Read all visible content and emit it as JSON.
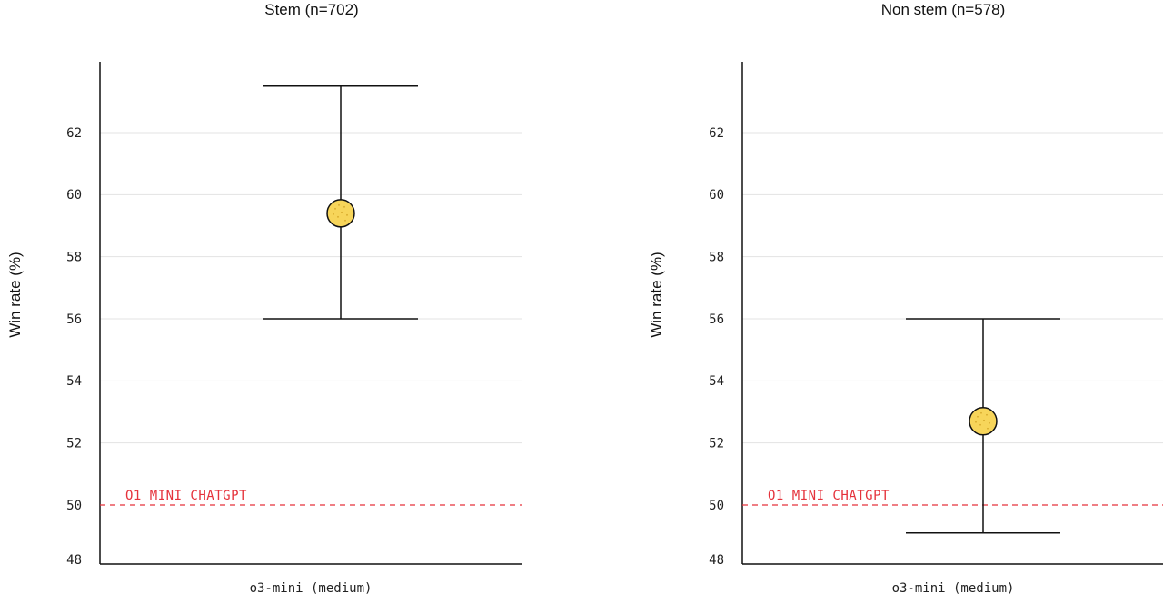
{
  "chart_data": [
    {
      "type": "scatter",
      "title": "Stem (n=702)",
      "ylabel": "Win rate (%)",
      "categories": [
        "o3-mini (medium)"
      ],
      "ylim": [
        48,
        64
      ],
      "yticks": [
        48,
        50,
        52,
        54,
        56,
        58,
        60,
        62
      ],
      "grid": true,
      "series": [
        {
          "values": [
            59.4
          ],
          "error_low": [
            56.0
          ],
          "error_high": [
            63.5
          ]
        }
      ],
      "reference_line": {
        "value": 50,
        "label": "O1 MINI CHATGPT",
        "color": "#e5323b"
      }
    },
    {
      "type": "scatter",
      "title": "Non stem (n=578)",
      "ylabel": "Win rate (%)",
      "categories": [
        "o3-mini (medium)"
      ],
      "ylim": [
        48,
        64
      ],
      "yticks": [
        48,
        50,
        52,
        54,
        56,
        58,
        60,
        62
      ],
      "grid": true,
      "series": [
        {
          "values": [
            52.7
          ],
          "error_low": [
            49.1
          ],
          "error_high": [
            56.0
          ]
        }
      ],
      "reference_line": {
        "value": 50,
        "label": "O1 MINI CHATGPT",
        "color": "#e5323b"
      }
    }
  ],
  "colors": {
    "marker_fill": "#f7d55a",
    "marker_stroke": "#111111",
    "grid": "#e3e3e3",
    "axis": "#111111"
  }
}
